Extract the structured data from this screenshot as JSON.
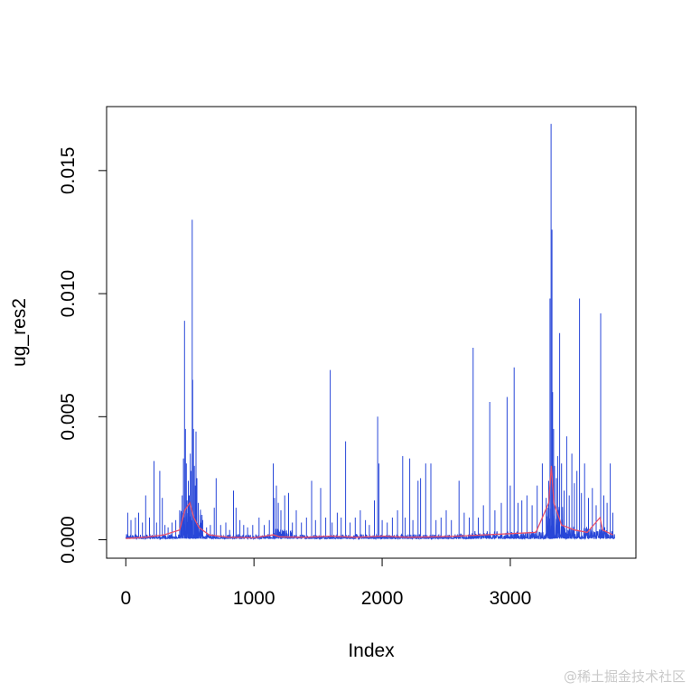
{
  "chart_data": {
    "type": "line",
    "title": "",
    "xlabel": "Index",
    "ylabel": "ug_res2",
    "xlim": [
      -150,
      3980
    ],
    "ylim": [
      -0.00075,
      0.0176
    ],
    "x_ticks": [
      0,
      1000,
      2000,
      3000
    ],
    "x_tick_labels": [
      "0",
      "1000",
      "2000",
      "3000"
    ],
    "y_ticks": [
      0.0,
      0.005,
      0.01,
      0.015
    ],
    "y_tick_labels": [
      "0.000",
      "0.005",
      "0.010",
      "0.015"
    ],
    "n_points": 3816,
    "grid": false,
    "legend": "none",
    "series": [
      {
        "color": "#2847d8",
        "style": "spikes",
        "baseline": 5e-05,
        "spikes": [
          [
            15,
            0.0011
          ],
          [
            40,
            0.0008
          ],
          [
            75,
            0.0009
          ],
          [
            100,
            0.0011
          ],
          [
            130,
            0.0007
          ],
          [
            155,
            0.0018
          ],
          [
            185,
            0.0009
          ],
          [
            220,
            0.0032
          ],
          [
            240,
            0.0007
          ],
          [
            265,
            0.0028
          ],
          [
            285,
            0.0017
          ],
          [
            305,
            0.0006
          ],
          [
            330,
            0.0005
          ],
          [
            360,
            0.0007
          ],
          [
            390,
            0.0008
          ],
          [
            420,
            0.0012
          ],
          [
            440,
            0.0018
          ],
          [
            450,
            0.0033
          ],
          [
            458,
            0.0089
          ],
          [
            465,
            0.0045
          ],
          [
            472,
            0.0031
          ],
          [
            478,
            0.0016
          ],
          [
            488,
            0.0024
          ],
          [
            495,
            0.0018
          ],
          [
            503,
            0.0035
          ],
          [
            510,
            0.0028
          ],
          [
            518,
            0.013
          ],
          [
            522,
            0.0065
          ],
          [
            528,
            0.0045
          ],
          [
            535,
            0.003
          ],
          [
            542,
            0.0022
          ],
          [
            548,
            0.0044
          ],
          [
            555,
            0.0025
          ],
          [
            565,
            0.0015
          ],
          [
            580,
            0.001
          ],
          [
            600,
            0.0008
          ],
          [
            630,
            0.0005
          ],
          [
            660,
            0.0006
          ],
          [
            690,
            0.0013
          ],
          [
            705,
            0.0025
          ],
          [
            740,
            0.0006
          ],
          [
            780,
            0.0007
          ],
          [
            810,
            0.0004
          ],
          [
            840,
            0.002
          ],
          [
            860,
            0.0013
          ],
          [
            890,
            0.0008
          ],
          [
            920,
            0.0006
          ],
          [
            950,
            0.0005
          ],
          [
            990,
            0.0006
          ],
          [
            1040,
            0.0009
          ],
          [
            1080,
            0.0006
          ],
          [
            1120,
            0.0008
          ],
          [
            1150,
            0.0031
          ],
          [
            1160,
            0.0017
          ],
          [
            1175,
            0.0022
          ],
          [
            1190,
            0.0015
          ],
          [
            1210,
            0.0012
          ],
          [
            1240,
            0.0018
          ],
          [
            1270,
            0.0019
          ],
          [
            1300,
            0.0007
          ],
          [
            1330,
            0.0012
          ],
          [
            1370,
            0.0007
          ],
          [
            1410,
            0.0009
          ],
          [
            1450,
            0.0024
          ],
          [
            1480,
            0.0008
          ],
          [
            1520,
            0.0021
          ],
          [
            1560,
            0.0009
          ],
          [
            1595,
            0.0069
          ],
          [
            1610,
            0.0007
          ],
          [
            1650,
            0.0011
          ],
          [
            1680,
            0.0009
          ],
          [
            1715,
            0.004
          ],
          [
            1750,
            0.0007
          ],
          [
            1790,
            0.0009
          ],
          [
            1830,
            0.0012
          ],
          [
            1870,
            0.0008
          ],
          [
            1900,
            0.0006
          ],
          [
            1940,
            0.0016
          ],
          [
            1965,
            0.005
          ],
          [
            1975,
            0.0031
          ],
          [
            2000,
            0.0008
          ],
          [
            2040,
            0.0007
          ],
          [
            2080,
            0.0009
          ],
          [
            2120,
            0.0012
          ],
          [
            2160,
            0.0034
          ],
          [
            2180,
            0.0009
          ],
          [
            2215,
            0.0033
          ],
          [
            2240,
            0.0008
          ],
          [
            2280,
            0.0024
          ],
          [
            2300,
            0.0025
          ],
          [
            2340,
            0.0031
          ],
          [
            2380,
            0.0031
          ],
          [
            2420,
            0.0008
          ],
          [
            2460,
            0.0009
          ],
          [
            2500,
            0.0012
          ],
          [
            2540,
            0.0008
          ],
          [
            2600,
            0.0024
          ],
          [
            2640,
            0.0011
          ],
          [
            2680,
            0.0009
          ],
          [
            2710,
            0.0078
          ],
          [
            2750,
            0.0009
          ],
          [
            2790,
            0.0014
          ],
          [
            2840,
            0.0056
          ],
          [
            2880,
            0.0012
          ],
          [
            2930,
            0.0015
          ],
          [
            2975,
            0.0058
          ],
          [
            3000,
            0.0022
          ],
          [
            3030,
            0.007
          ],
          [
            3060,
            0.0015
          ],
          [
            3090,
            0.0016
          ],
          [
            3130,
            0.0018
          ],
          [
            3170,
            0.0014
          ],
          [
            3210,
            0.0022
          ],
          [
            3250,
            0.0031
          ],
          [
            3280,
            0.0017
          ],
          [
            3300,
            0.0024
          ],
          [
            3310,
            0.0098
          ],
          [
            3318,
            0.0169
          ],
          [
            3325,
            0.0126
          ],
          [
            3330,
            0.006
          ],
          [
            3338,
            0.0045
          ],
          [
            3345,
            0.003
          ],
          [
            3360,
            0.0025
          ],
          [
            3370,
            0.0034
          ],
          [
            3385,
            0.0084
          ],
          [
            3400,
            0.0031
          ],
          [
            3420,
            0.002
          ],
          [
            3440,
            0.0042
          ],
          [
            3460,
            0.0018
          ],
          [
            3480,
            0.0035
          ],
          [
            3500,
            0.0023
          ],
          [
            3520,
            0.0028
          ],
          [
            3540,
            0.0098
          ],
          [
            3555,
            0.0019
          ],
          [
            3580,
            0.0031
          ],
          [
            3610,
            0.0017
          ],
          [
            3640,
            0.0021
          ],
          [
            3670,
            0.0014
          ],
          [
            3705,
            0.0092
          ],
          [
            3730,
            0.0018
          ],
          [
            3755,
            0.0015
          ],
          [
            3780,
            0.0031
          ],
          [
            3800,
            0.0011
          ]
        ]
      },
      {
        "color": "#e8506a",
        "style": "smoothed-line",
        "points": [
          [
            0,
            5e-05
          ],
          [
            150,
            0.0001
          ],
          [
            300,
            0.0002
          ],
          [
            420,
            0.0004
          ],
          [
            460,
            0.0012
          ],
          [
            500,
            0.0015
          ],
          [
            530,
            0.0009
          ],
          [
            570,
            0.0005
          ],
          [
            650,
            0.0002
          ],
          [
            800,
            0.0001
          ],
          [
            1000,
            8e-05
          ],
          [
            1150,
            0.0002
          ],
          [
            1200,
            0.00012
          ],
          [
            1400,
            0.0001
          ],
          [
            1600,
            0.00015
          ],
          [
            1800,
            0.0001
          ],
          [
            2000,
            0.00015
          ],
          [
            2200,
            0.0001
          ],
          [
            2400,
            0.00012
          ],
          [
            2600,
            0.00015
          ],
          [
            2800,
            0.0002
          ],
          [
            3000,
            0.00025
          ],
          [
            3200,
            0.0003
          ],
          [
            3300,
            0.0015
          ],
          [
            3320,
            0.003
          ],
          [
            3340,
            0.0015
          ],
          [
            3400,
            0.0006
          ],
          [
            3500,
            0.0004
          ],
          [
            3600,
            0.0003
          ],
          [
            3700,
            0.0009
          ],
          [
            3720,
            0.0004
          ],
          [
            3800,
            0.0002
          ]
        ]
      }
    ]
  },
  "watermark": "@稀土掘金技术社区"
}
